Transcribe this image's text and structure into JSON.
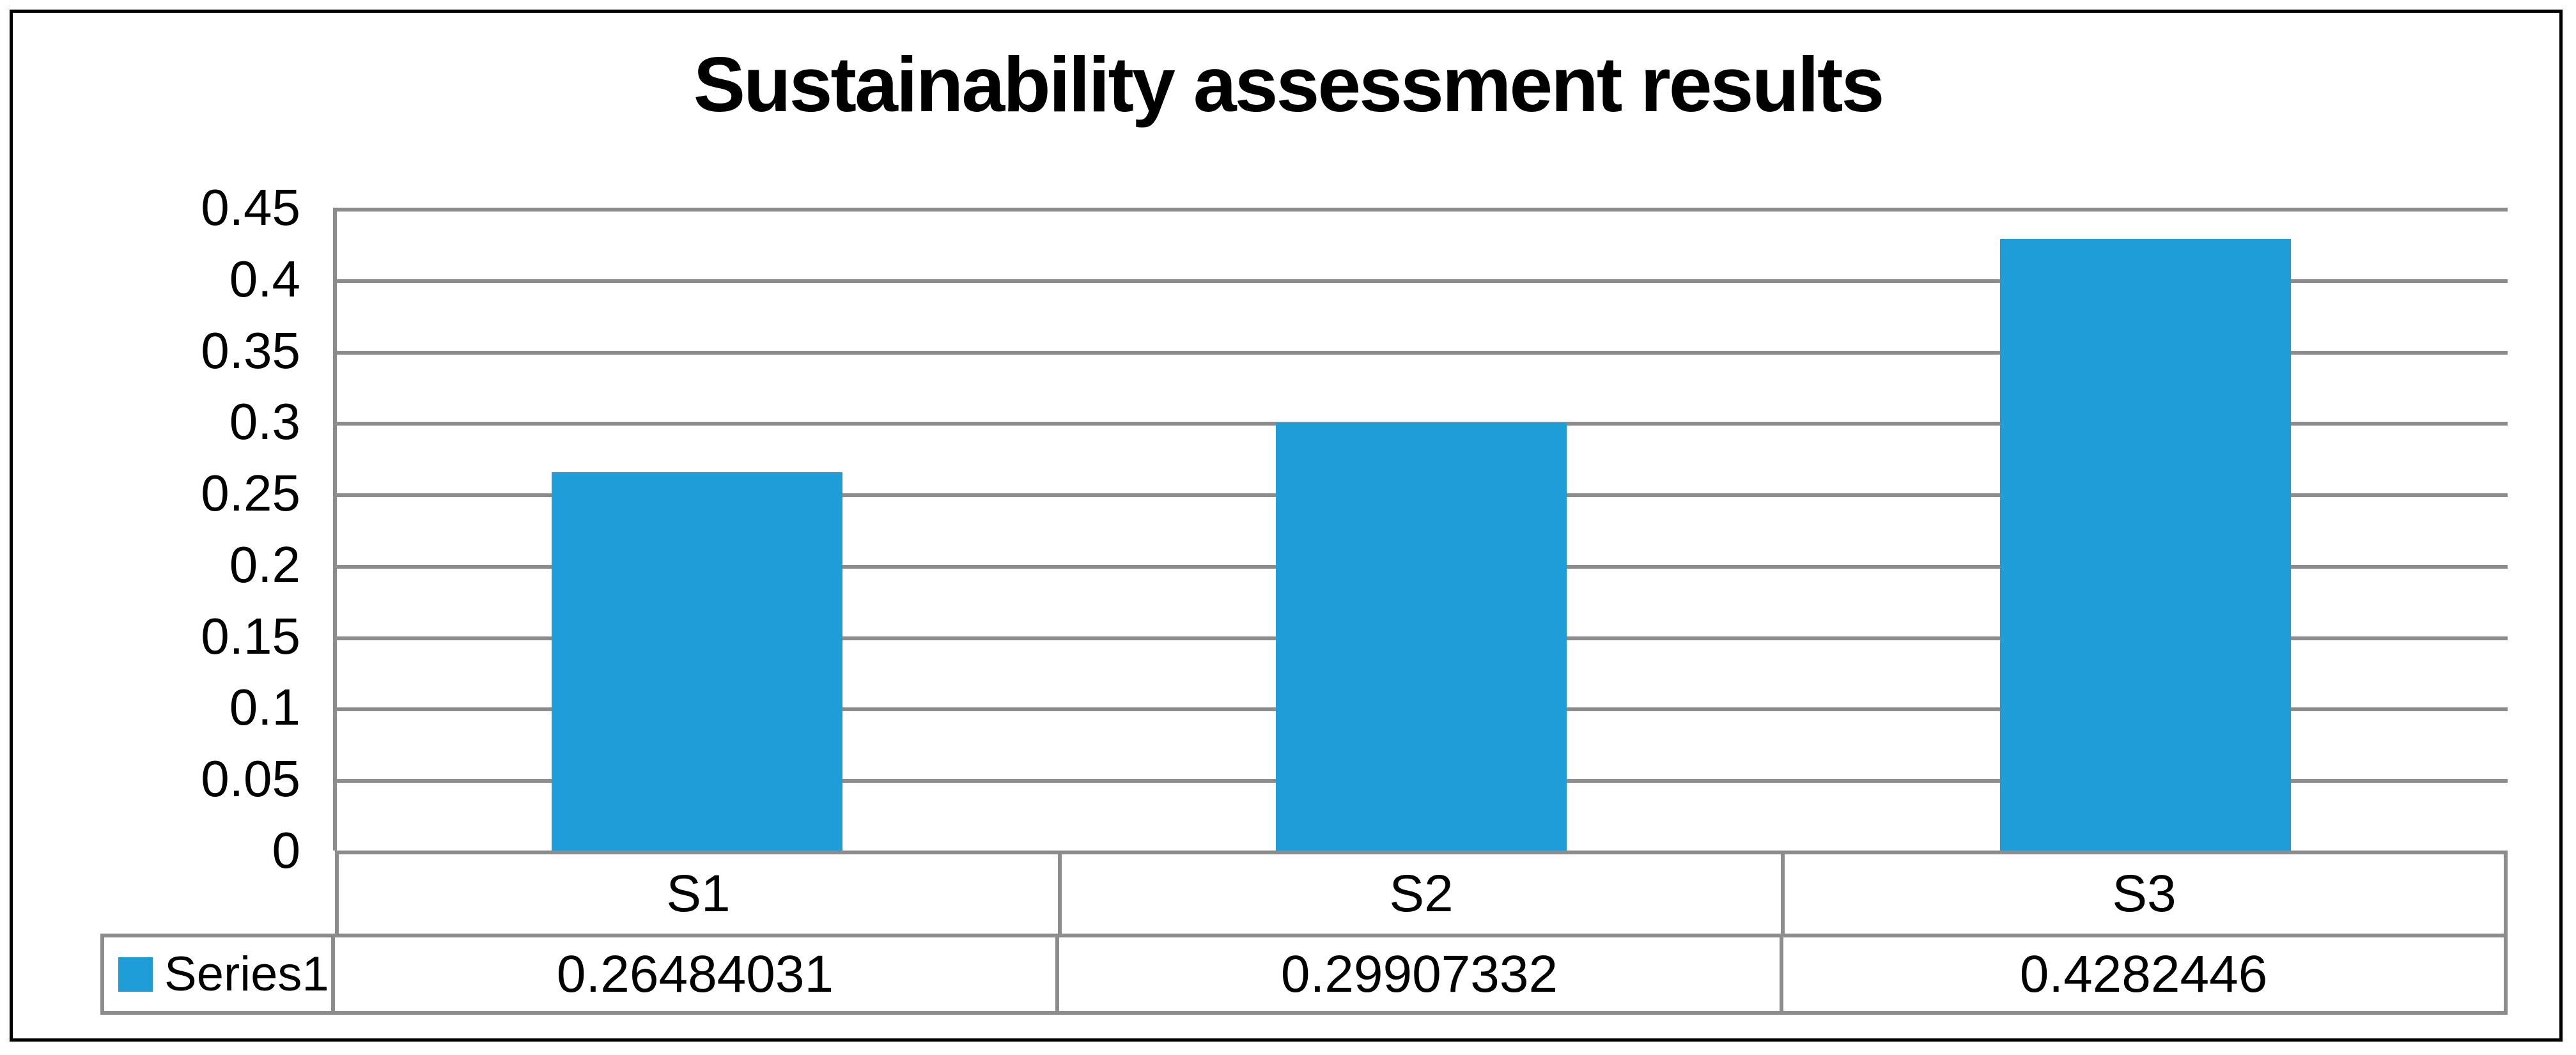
{
  "chart_data": {
    "type": "bar",
    "title": "Sustainability assessment results",
    "categories": [
      "S1",
      "S2",
      "S3"
    ],
    "series": [
      {
        "name": "Series1",
        "values": [
          0.26484031,
          0.29907332,
          0.4282446
        ]
      }
    ],
    "value_labels": [
      "0.26484031",
      "0.29907332",
      "0.4282446"
    ],
    "xlabel": "",
    "ylabel": "",
    "ylim": [
      0,
      0.45
    ],
    "y_tick_step": 0.05,
    "y_tick_labels": [
      "0.45",
      "0.4",
      "0.35",
      "0.3",
      "0.25",
      "0.2",
      "0.15",
      "0.1",
      "0.05",
      "0"
    ],
    "grid": "horizontal",
    "legend_position": "data-table-left",
    "data_table_shown": true,
    "colors": {
      "bar": "#1E9DD8",
      "gridline": "#8C8C8C",
      "table_border": "#8C8C8C",
      "text": "#000000",
      "frame_border": "#000000",
      "background": "#FFFFFF"
    }
  }
}
